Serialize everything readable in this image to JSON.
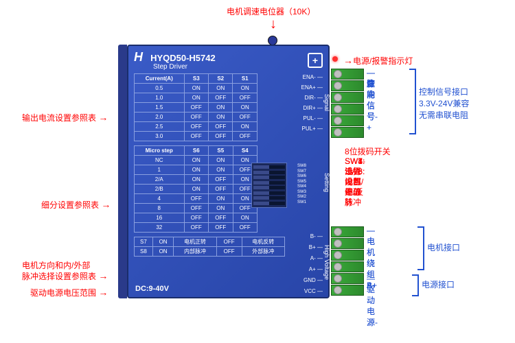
{
  "top_label": "电机调速电位器（10K）",
  "model": "HYQD50-H5742",
  "subtitle": "Step Driver",
  "voltage": "DC:9-40V",
  "current_table": {
    "headers": [
      "Current(A)",
      "S3",
      "S2",
      "S1"
    ],
    "rows": [
      [
        "0.5",
        "ON",
        "ON",
        "ON"
      ],
      [
        "1.0",
        "ON",
        "OFF",
        "OFF"
      ],
      [
        "1.5",
        "OFF",
        "ON",
        "ON"
      ],
      [
        "2.0",
        "OFF",
        "ON",
        "OFF"
      ],
      [
        "2.5",
        "OFF",
        "OFF",
        "ON"
      ],
      [
        "3.0",
        "OFF",
        "OFF",
        "OFF"
      ]
    ]
  },
  "micro_table": {
    "headers": [
      "Micro step",
      "S6",
      "S5",
      "S4"
    ],
    "rows": [
      [
        "NC",
        "ON",
        "ON",
        "ON"
      ],
      [
        "1",
        "ON",
        "ON",
        "OFF"
      ],
      [
        "2/A",
        "ON",
        "OFF",
        "ON"
      ],
      [
        "2/B",
        "ON",
        "OFF",
        "OFF"
      ],
      [
        "4",
        "OFF",
        "ON",
        "ON"
      ],
      [
        "8",
        "OFF",
        "ON",
        "OFF"
      ],
      [
        "16",
        "OFF",
        "OFF",
        "ON"
      ],
      [
        "32",
        "OFF",
        "OFF",
        "OFF"
      ]
    ]
  },
  "s78_table": {
    "rows": [
      [
        "S7",
        "ON",
        "电机正转",
        "OFF",
        "电机反转"
      ],
      [
        "S8",
        "ON",
        "内部脉冲",
        "OFF",
        "外部脉冲"
      ]
    ]
  },
  "signal_pins": [
    "ENA-",
    "ENA+",
    "DIR-",
    "DIR+",
    "PUL-",
    "PUL+"
  ],
  "hv_pins": [
    "B-",
    "B+",
    "A-",
    "A+",
    "GND",
    "VCC"
  ],
  "dip_labels": [
    "SW8",
    "SW7",
    "SW6",
    "SW5",
    "SW4",
    "SW3",
    "SW2",
    "SW1"
  ],
  "side_labels": {
    "signal": "Signal",
    "setting": "Setting",
    "hv": "High Voltage"
  },
  "left_labels": {
    "current": "输出电流设置参照表",
    "micro": "细分设置参照表",
    "dir_pulse_1": "电机方向和内/外部",
    "dir_pulse_2": "脉冲选择设置参照表",
    "voltage": "驱动电源电压范围"
  },
  "right_labels": {
    "power_alarm": "电源/报警指示灯",
    "sig": [
      "使能信号-",
      "使能信号+",
      "方向信号-",
      "方向信号+",
      "脉冲信号-",
      "脉冲信号+"
    ],
    "sig_group_1": "控制信号接口",
    "sig_group_2": "3.3V-24V兼容",
    "sig_group_3": "无需串联电阻",
    "dip_title": "8位拨码开关",
    "dip": [
      "SW1-SW3:设置电流",
      "SW4-SW6:设置细分",
      "SW7:设置电机正/反转",
      "SW8:选择内部/外部脉冲"
    ],
    "motor": [
      "电机绕组B-",
      "电机绕组B+",
      "电机绕组A-",
      "电机绕组A+"
    ],
    "motor_group": "电机接口",
    "power": [
      "驱动电源-",
      "驱动电源-"
    ],
    "power_group": "电源接口"
  }
}
